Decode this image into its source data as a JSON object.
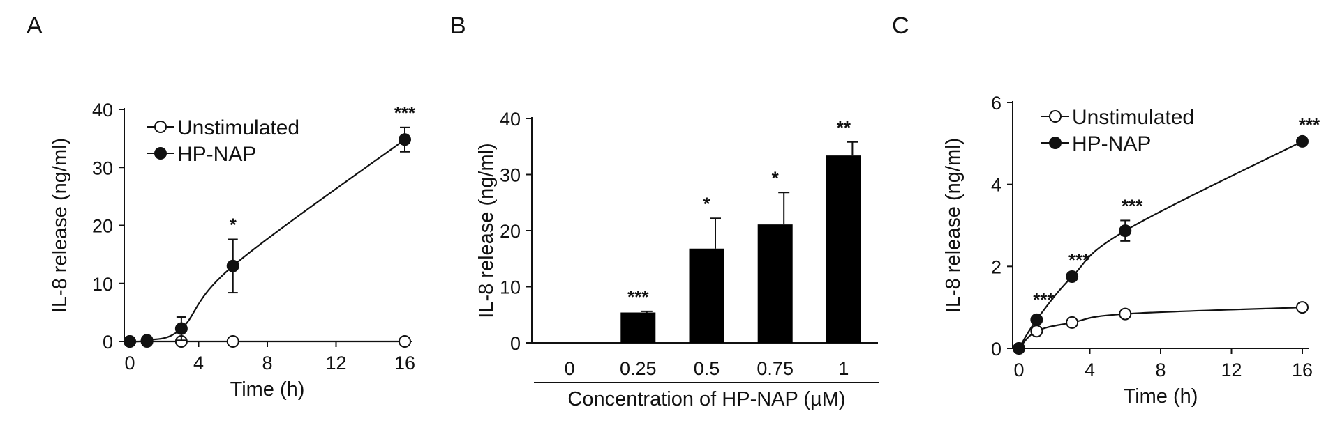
{
  "panels": [
    {
      "letter": "A"
    },
    {
      "letter": "B"
    },
    {
      "letter": "C"
    }
  ],
  "chart_data": [
    {
      "panel": "A",
      "type": "line",
      "title": "",
      "xlabel": "Time (h)",
      "ylabel": "IL-8 release (ng/ml)",
      "xlim": [
        0,
        16
      ],
      "ylim": [
        0,
        40
      ],
      "xticks": [
        0,
        4,
        8,
        12,
        16
      ],
      "yticks": [
        0,
        10,
        20,
        30,
        40
      ],
      "legend": "top-left",
      "series": [
        {
          "name": "Unstimulated",
          "marker": "open-circle",
          "color": "#111111",
          "points": [
            {
              "x": 0,
              "y": 0,
              "err": 0,
              "sig": ""
            },
            {
              "x": 1,
              "y": 0,
              "err": 0,
              "sig": ""
            },
            {
              "x": 3,
              "y": 0,
              "err": 0,
              "sig": ""
            },
            {
              "x": 6,
              "y": 0,
              "err": 0,
              "sig": ""
            },
            {
              "x": 16,
              "y": 0,
              "err": 0,
              "sig": ""
            }
          ]
        },
        {
          "name": "HP-NAP",
          "marker": "filled-circle",
          "color": "#111111",
          "points": [
            {
              "x": 0,
              "y": 0,
              "err": 0,
              "sig": ""
            },
            {
              "x": 1,
              "y": 0.2,
              "err": 0,
              "sig": ""
            },
            {
              "x": 3,
              "y": 2.2,
              "err": 2,
              "sig": ""
            },
            {
              "x": 6,
              "y": 13,
              "err": 4.6,
              "sig": "*"
            },
            {
              "x": 16,
              "y": 34.8,
              "err": 2.1,
              "sig": "***"
            }
          ]
        }
      ]
    },
    {
      "panel": "B",
      "type": "bar",
      "title": "",
      "xlabel": "Concentration of HP-NAP (µM)",
      "ylabel": "IL-8 release (ng/ml)",
      "ylim": [
        0,
        40
      ],
      "yticks": [
        0,
        10,
        20,
        30,
        40
      ],
      "categories": [
        "0",
        "0.25",
        "0.5",
        "0.75",
        "1"
      ],
      "values": [
        0,
        5.4,
        16.8,
        21.1,
        33.4
      ],
      "errors": [
        0,
        0.2,
        5.4,
        5.7,
        2.4
      ],
      "significance": [
        "",
        "***",
        "*",
        "*",
        "**"
      ],
      "bar_color": "#000000"
    },
    {
      "panel": "C",
      "type": "line",
      "title": "",
      "xlabel": "Time (h)",
      "ylabel": "IL-8 release (ng/ml)",
      "xlim": [
        0,
        16
      ],
      "ylim": [
        0,
        6
      ],
      "xticks": [
        0,
        4,
        8,
        12,
        16
      ],
      "yticks": [
        0,
        2,
        4,
        6
      ],
      "legend": "top-left",
      "series": [
        {
          "name": "Unstimulated",
          "marker": "open-circle",
          "color": "#111111",
          "points": [
            {
              "x": 0,
              "y": 0,
              "err": 0,
              "sig": ""
            },
            {
              "x": 1,
              "y": 0.42,
              "err": 0,
              "sig": ""
            },
            {
              "x": 3,
              "y": 0.63,
              "err": 0,
              "sig": ""
            },
            {
              "x": 6,
              "y": 0.84,
              "err": 0,
              "sig": ""
            },
            {
              "x": 16,
              "y": 1.0,
              "err": 0.05,
              "sig": ""
            }
          ]
        },
        {
          "name": "HP-NAP",
          "marker": "filled-circle",
          "color": "#111111",
          "points": [
            {
              "x": 0,
              "y": 0,
              "err": 0,
              "sig": ""
            },
            {
              "x": 1,
              "y": 0.7,
              "err": 0,
              "sig": "***"
            },
            {
              "x": 3,
              "y": 1.75,
              "err": 0.05,
              "sig": "***"
            },
            {
              "x": 6,
              "y": 2.87,
              "err": 0.25,
              "sig": "***"
            },
            {
              "x": 16,
              "y": 5.05,
              "err": 0.05,
              "sig": "***"
            }
          ]
        }
      ]
    }
  ]
}
